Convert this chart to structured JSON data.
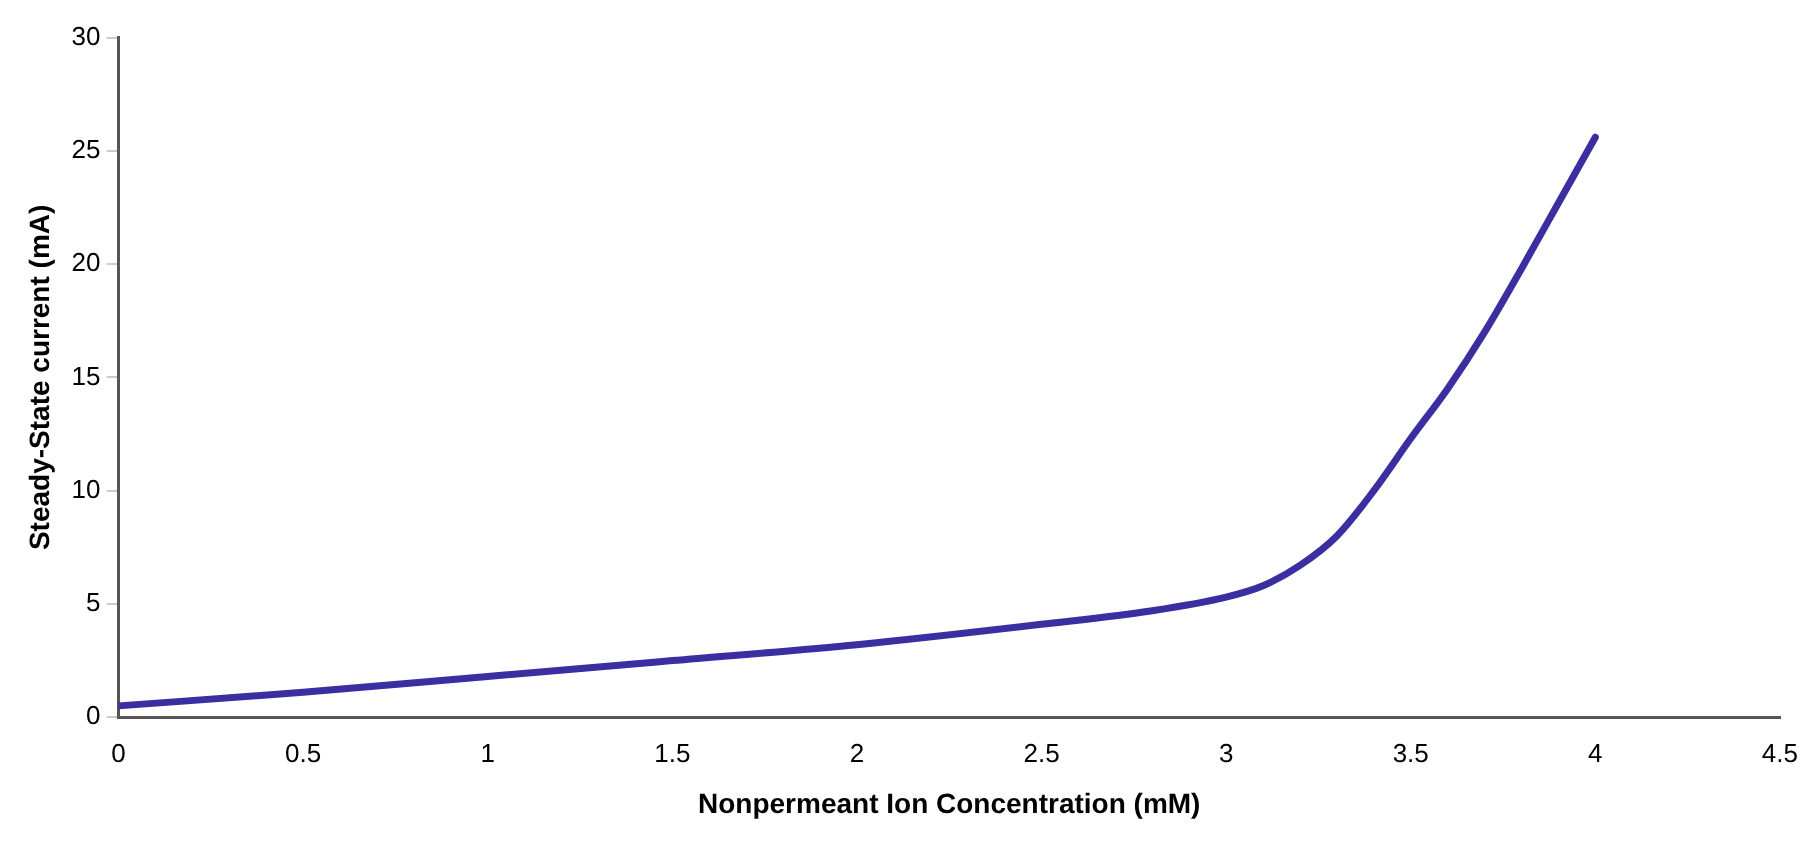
{
  "chart_data": {
    "type": "line",
    "xlabel": "Nonpermeant Ion Concentration (mM)",
    "ylabel": "Steady-State current (mA)",
    "series": [
      {
        "color": "#3b2ea0",
        "x": [
          0,
          0.5,
          1,
          1.5,
          2,
          2.5,
          2.8,
          3,
          3.1,
          3.2,
          3.3,
          3.4,
          3.5,
          3.6,
          3.7,
          3.8,
          3.9,
          4
        ],
        "values": [
          0.5,
          1.1,
          1.8,
          2.5,
          3.2,
          4.1,
          4.7,
          5.3,
          5.8,
          6.7,
          8.0,
          10.0,
          12.3,
          14.5,
          17.0,
          19.8,
          22.7,
          25.6
        ]
      }
    ],
    "xlim": [
      0,
      4.5
    ],
    "xticks": [
      0,
      0.5,
      1,
      1.5,
      2,
      2.5,
      3,
      3.5,
      4,
      4.5
    ],
    "ylim": [
      0,
      30
    ],
    "yticks": [
      0,
      5,
      10,
      15,
      20,
      25,
      30
    ],
    "grid": false,
    "legend": false,
    "marker": "none",
    "line_style": "solid"
  }
}
